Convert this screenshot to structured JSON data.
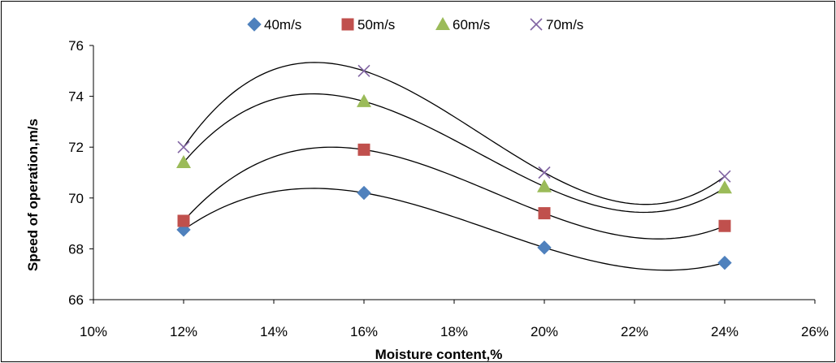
{
  "chart_data": {
    "type": "scatter",
    "title": "",
    "xlabel": "Moisture content,%",
    "ylabel": "Speed of operation,m/s",
    "x": [
      12,
      16,
      20,
      24
    ],
    "x_unit": "%",
    "xlim": [
      10,
      26
    ],
    "x_ticks": [
      10,
      12,
      14,
      16,
      18,
      20,
      22,
      24,
      26
    ],
    "x_tick_labels": [
      "10%",
      "12%",
      "14%",
      "16%",
      "18%",
      "20%",
      "22%",
      "24%",
      "26%"
    ],
    "ylim": [
      66,
      76
    ],
    "y_ticks": [
      66,
      68,
      70,
      72,
      74,
      76
    ],
    "y_tick_labels": [
      "66",
      "68",
      "70",
      "72",
      "74",
      "76"
    ],
    "grid": false,
    "legend": "top",
    "trendline": "polynomial",
    "series": [
      {
        "name": "40m/s",
        "marker": "diamond",
        "color": "#4f81bd",
        "values": [
          68.75,
          70.2,
          68.05,
          67.45
        ]
      },
      {
        "name": "50m/s",
        "marker": "square",
        "color": "#c0504d",
        "values": [
          69.1,
          71.9,
          69.4,
          68.9
        ]
      },
      {
        "name": "60m/s",
        "marker": "triangle",
        "color": "#9bbb59",
        "values": [
          71.4,
          73.8,
          70.45,
          70.4
        ]
      },
      {
        "name": "70m/s",
        "marker": "x",
        "color": "#8064a2",
        "values": [
          72.0,
          75.0,
          71.0,
          70.85
        ]
      }
    ]
  }
}
